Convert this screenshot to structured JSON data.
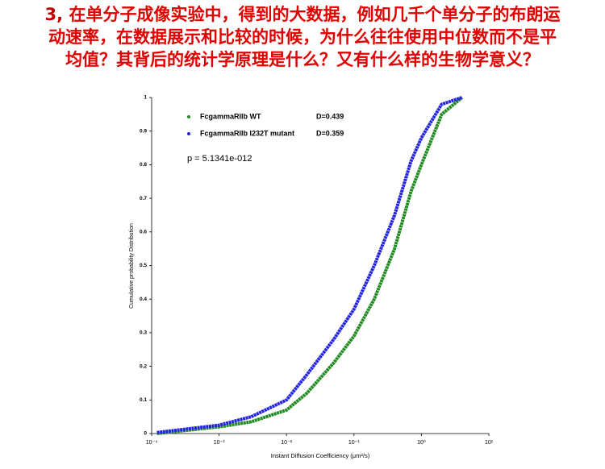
{
  "header": {
    "number": "3,",
    "lines": [
      "在单分子成像实验中，得到的大数据，例如几千个单分子的布朗运",
      "动速率，在数据展示和比较的时候，为什么往往使用中位数而不是平",
      "均值？其背后的统计学原理是什么？又有什么样的生物学意义？"
    ]
  },
  "chart_data": {
    "type": "line",
    "x_label": "Instant Diffusion Coefficiency (μm²/s)",
    "y_label": "Cumulative probability Distribution",
    "annotation": "p = 5.1341e-012",
    "x_scale": "log",
    "x": [
      0.00012,
      0.001,
      0.003,
      0.01,
      0.02,
      0.05,
      0.1,
      0.2,
      0.4,
      0.7,
      1.0,
      2.0,
      4.0
    ],
    "series": [
      {
        "name": "FcgammaRIIb WT",
        "stat": "D=0.439",
        "color": "#1f8a1f",
        "values": [
          0.0,
          0.02,
          0.035,
          0.07,
          0.12,
          0.21,
          0.29,
          0.4,
          0.55,
          0.72,
          0.8,
          0.95,
          1.0
        ]
      },
      {
        "name": "FcgammaRIIb I232T mutant",
        "stat": "D=0.359",
        "color": "#2222e6",
        "values": [
          0.003,
          0.025,
          0.05,
          0.1,
          0.175,
          0.28,
          0.37,
          0.5,
          0.65,
          0.81,
          0.88,
          0.98,
          1.0
        ]
      }
    ],
    "xlim": [
      0.0001,
      10
    ],
    "xticks": [
      {
        "value": 0.0001,
        "label": "10⁻⁴"
      },
      {
        "value": 0.001,
        "label": "10⁻³"
      },
      {
        "value": 0.01,
        "label": "10⁻²"
      },
      {
        "value": 0.1,
        "label": "10⁻¹"
      },
      {
        "value": 1,
        "label": "10⁰"
      },
      {
        "value": 10,
        "label": "10¹"
      }
    ],
    "ylim": [
      0,
      1
    ],
    "yticks": [
      0,
      0.1,
      0.2,
      0.3,
      0.4,
      0.5,
      0.6,
      0.7,
      0.8,
      0.9,
      1
    ]
  }
}
